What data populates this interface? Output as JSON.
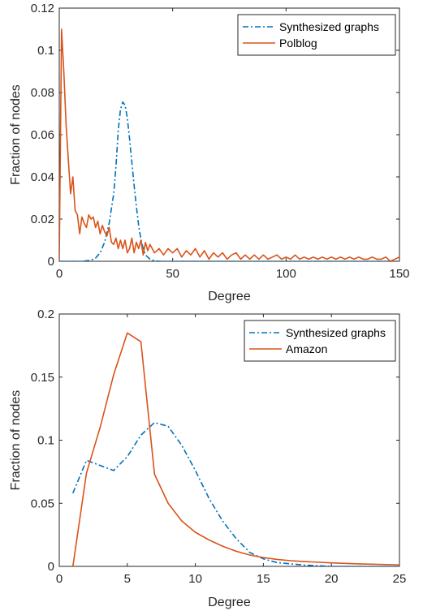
{
  "chart_data": [
    {
      "type": "line",
      "xlabel": "Degree",
      "ylabel": "Fraction of nodes",
      "xlim": [
        0,
        150
      ],
      "ylim": [
        0,
        0.12
      ],
      "xticks": [
        "0",
        "50",
        "100",
        "150"
      ],
      "yticks": [
        "0",
        "0.02",
        "0.04",
        "0.06",
        "0.08",
        "0.1",
        "0.12"
      ],
      "legend_position": "top-right",
      "colors": {
        "synth": "#0072BD",
        "real": "#D95319"
      },
      "series": [
        {
          "name": "Synthesized graphs",
          "style": "dash-dot",
          "points": [
            [
              0,
              0
            ],
            [
              10,
              0
            ],
            [
              14,
              0.0005
            ],
            [
              16,
              0.0015
            ],
            [
              18,
              0.004
            ],
            [
              20,
              0.009
            ],
            [
              22,
              0.018
            ],
            [
              24,
              0.032
            ],
            [
              25,
              0.045
            ],
            [
              26,
              0.062
            ],
            [
              27,
              0.072
            ],
            [
              28,
              0.0755
            ],
            [
              29,
              0.074
            ],
            [
              30,
              0.068
            ],
            [
              31,
              0.058
            ],
            [
              32,
              0.047
            ],
            [
              33,
              0.036
            ],
            [
              34,
              0.026
            ],
            [
              35,
              0.017
            ],
            [
              36,
              0.0105
            ],
            [
              37,
              0.006
            ],
            [
              38,
              0.003
            ],
            [
              40,
              0.001
            ],
            [
              42,
              0.0002
            ],
            [
              45,
              0
            ],
            [
              150,
              0
            ]
          ]
        },
        {
          "name": "Polblog",
          "style": "solid",
          "points": [
            [
              0,
              0
            ],
            [
              1,
              0.11
            ],
            [
              2,
              0.09
            ],
            [
              3,
              0.065
            ],
            [
              4,
              0.048
            ],
            [
              5,
              0.032
            ],
            [
              6,
              0.04
            ],
            [
              7,
              0.024
            ],
            [
              8,
              0.022
            ],
            [
              9,
              0.013
            ],
            [
              10,
              0.021
            ],
            [
              11,
              0.018
            ],
            [
              12,
              0.016
            ],
            [
              13,
              0.022
            ],
            [
              14,
              0.02
            ],
            [
              15,
              0.021
            ],
            [
              16,
              0.016
            ],
            [
              17,
              0.019
            ],
            [
              18,
              0.013
            ],
            [
              19,
              0.017
            ],
            [
              20,
              0.014
            ],
            [
              21,
              0.012
            ],
            [
              22,
              0.016
            ],
            [
              23,
              0.009
            ],
            [
              24,
              0.008
            ],
            [
              25,
              0.011
            ],
            [
              26,
              0.006
            ],
            [
              27,
              0.01
            ],
            [
              28,
              0.006
            ],
            [
              29,
              0.01
            ],
            [
              30,
              0.004
            ],
            [
              31,
              0.006
            ],
            [
              32,
              0.011
            ],
            [
              33,
              0.004
            ],
            [
              34,
              0.009
            ],
            [
              35,
              0.006
            ],
            [
              36,
              0.01
            ],
            [
              37,
              0.003
            ],
            [
              38,
              0.009
            ],
            [
              39,
              0.005
            ],
            [
              40,
              0.008
            ],
            [
              42,
              0.004
            ],
            [
              44,
              0.006
            ],
            [
              46,
              0.003
            ],
            [
              48,
              0.006
            ],
            [
              50,
              0.004
            ],
            [
              52,
              0.006
            ],
            [
              54,
              0.002
            ],
            [
              56,
              0.005
            ],
            [
              58,
              0.003
            ],
            [
              60,
              0.006
            ],
            [
              62,
              0.002
            ],
            [
              64,
              0.005
            ],
            [
              66,
              0.001
            ],
            [
              68,
              0.004
            ],
            [
              70,
              0.002
            ],
            [
              72,
              0.004
            ],
            [
              74,
              0.001
            ],
            [
              76,
              0.003
            ],
            [
              78,
              0.004
            ],
            [
              80,
              0.001
            ],
            [
              82,
              0.003
            ],
            [
              84,
              0.001
            ],
            [
              86,
              0.003
            ],
            [
              88,
              0.001
            ],
            [
              90,
              0.003
            ],
            [
              92,
              0.001
            ],
            [
              94,
              0.002
            ],
            [
              96,
              0.003
            ],
            [
              98,
              0.001
            ],
            [
              100,
              0.002
            ],
            [
              102,
              0.001
            ],
            [
              104,
              0.003
            ],
            [
              106,
              0.001
            ],
            [
              108,
              0.002
            ],
            [
              110,
              0.001
            ],
            [
              112,
              0.002
            ],
            [
              114,
              0.001
            ],
            [
              116,
              0.002
            ],
            [
              118,
              0.001
            ],
            [
              120,
              0.002
            ],
            [
              122,
              0.001
            ],
            [
              124,
              0.002
            ],
            [
              126,
              0.001
            ],
            [
              128,
              0.002
            ],
            [
              130,
              0.001
            ],
            [
              132,
              0.002
            ],
            [
              134,
              0.001
            ],
            [
              136,
              0.001
            ],
            [
              138,
              0.002
            ],
            [
              140,
              0.001
            ],
            [
              142,
              0.001
            ],
            [
              144,
              0.002
            ],
            [
              146,
              0
            ],
            [
              148,
              0.001
            ],
            [
              150,
              0.002
            ]
          ]
        }
      ]
    },
    {
      "type": "line",
      "xlabel": "Degree",
      "ylabel": "Fraction of nodes",
      "xlim": [
        0,
        25
      ],
      "ylim": [
        0,
        0.2
      ],
      "xticks": [
        "0",
        "5",
        "10",
        "15",
        "20",
        "25"
      ],
      "yticks": [
        "0",
        "0.05",
        "0.1",
        "0.15",
        "0.2"
      ],
      "legend_position": "top-right",
      "colors": {
        "synth": "#0072BD",
        "real": "#D95319"
      },
      "series": [
        {
          "name": "Synthesized graphs",
          "style": "dash-dot",
          "points": [
            [
              1,
              0.058
            ],
            [
              2,
              0.084
            ],
            [
              3,
              0.08
            ],
            [
              4,
              0.076
            ],
            [
              5,
              0.087
            ],
            [
              6,
              0.104
            ],
            [
              7,
              0.114
            ],
            [
              8,
              0.111
            ],
            [
              9,
              0.096
            ],
            [
              10,
              0.076
            ],
            [
              11,
              0.054
            ],
            [
              12,
              0.036
            ],
            [
              13,
              0.022
            ],
            [
              14,
              0.011
            ],
            [
              15,
              0.006
            ],
            [
              16,
              0.003
            ],
            [
              18,
              0.001
            ],
            [
              20,
              0
            ],
            [
              25,
              0
            ]
          ]
        },
        {
          "name": "Amazon",
          "style": "solid",
          "points": [
            [
              1,
              0
            ],
            [
              2,
              0.074
            ],
            [
              3,
              0.11
            ],
            [
              4,
              0.152
            ],
            [
              5,
              0.185
            ],
            [
              6,
              0.178
            ],
            [
              7,
              0.073
            ],
            [
              8,
              0.05
            ],
            [
              9,
              0.036
            ],
            [
              10,
              0.027
            ],
            [
              11,
              0.021
            ],
            [
              12,
              0.016
            ],
            [
              13,
              0.012
            ],
            [
              14,
              0.009
            ],
            [
              15,
              0.007
            ],
            [
              16,
              0.0055
            ],
            [
              17,
              0.0045
            ],
            [
              18,
              0.0038
            ],
            [
              20,
              0.0028
            ],
            [
              22,
              0.002
            ],
            [
              25,
              0.0012
            ]
          ]
        }
      ]
    }
  ]
}
